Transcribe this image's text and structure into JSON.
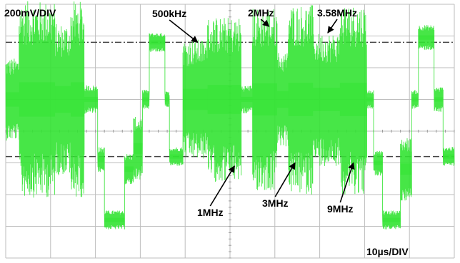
{
  "chart_data": {
    "type": "line",
    "title": "",
    "xlabel": "",
    "ylabel": "",
    "grid": true,
    "divisions": {
      "x": 10,
      "y": 8
    },
    "scale": {
      "vertical": "200mV/DIV",
      "horizontal": "10µs/DIV"
    },
    "x_unit": "µs",
    "y_unit": "mV",
    "xlim": [
      0,
      100
    ],
    "ylim": [
      -800,
      800
    ],
    "trace_color": "#33e333",
    "grid_color": "#bdbdbd",
    "cursor_levels": [
      {
        "style": "dash-dot",
        "y": 560
      },
      {
        "style": "dashed",
        "y": -160
      }
    ],
    "series": [
      {
        "segments": [
          {
            "t0": 0.0,
            "t1": 3.0,
            "level": 200,
            "burst_amp": 260
          },
          {
            "t0": 3.0,
            "t1": 11.0,
            "level": 200,
            "burst_amp": 620
          },
          {
            "t0": 11.0,
            "t1": 14.5,
            "level": 200,
            "burst_amp": 480
          },
          {
            "t0": 14.5,
            "t1": 17.5,
            "level": 200,
            "burst_amp": 620
          },
          {
            "t0": 17.5,
            "t1": 20.5,
            "level": 200,
            "burst_amp": 90
          },
          {
            "t0": 20.5,
            "t1": 22.0,
            "level": -180,
            "burst_amp": 80
          },
          {
            "t0": 22.0,
            "t1": 26.5,
            "level": -560,
            "burst_amp": 60
          },
          {
            "t0": 26.5,
            "t1": 28.5,
            "level": -240,
            "burst_amp": 100
          },
          {
            "t0": 28.5,
            "t1": 30.5,
            "level": -110,
            "burst_amp": 200
          },
          {
            "t0": 30.5,
            "t1": 32.0,
            "level": 200,
            "burst_amp": 60
          },
          {
            "t0": 32.0,
            "t1": 35.5,
            "level": 560,
            "burst_amp": 60
          },
          {
            "t0": 35.5,
            "t1": 36.5,
            "level": 200,
            "burst_amp": 50
          },
          {
            "t0": 36.5,
            "t1": 39.5,
            "level": -160,
            "burst_amp": 60
          },
          {
            "t0": 39.5,
            "t1": 45.0,
            "level": 200,
            "burst_amp": 380
          },
          {
            "t0": 45.0,
            "t1": 52.5,
            "level": 200,
            "burst_amp": 520
          },
          {
            "t0": 52.5,
            "t1": 55.0,
            "level": 200,
            "burst_amp": 90
          },
          {
            "t0": 55.0,
            "t1": 60.5,
            "level": 200,
            "burst_amp": 580
          },
          {
            "t0": 60.5,
            "t1": 63.0,
            "level": 200,
            "burst_amp": 300
          },
          {
            "t0": 63.0,
            "t1": 68.5,
            "level": 200,
            "burst_amp": 600
          },
          {
            "t0": 68.5,
            "t1": 74.5,
            "level": 200,
            "burst_amp": 420
          },
          {
            "t0": 74.5,
            "t1": 80.5,
            "level": 200,
            "burst_amp": 600
          },
          {
            "t0": 80.5,
            "t1": 82.0,
            "level": 200,
            "burst_amp": 60
          },
          {
            "t0": 82.0,
            "t1": 84.0,
            "level": -200,
            "burst_amp": 80
          },
          {
            "t0": 84.0,
            "t1": 88.0,
            "level": -560,
            "burst_amp": 60
          },
          {
            "t0": 88.0,
            "t1": 90.5,
            "level": -240,
            "burst_amp": 200
          },
          {
            "t0": 90.5,
            "t1": 92.0,
            "level": 200,
            "burst_amp": 60
          },
          {
            "t0": 92.0,
            "t1": 95.5,
            "level": 590,
            "burst_amp": 80
          },
          {
            "t0": 95.5,
            "t1": 97.5,
            "level": 200,
            "burst_amp": 80
          },
          {
            "t0": 97.5,
            "t1": 100,
            "level": -160,
            "burst_amp": 60
          }
        ]
      }
    ],
    "annotations": [
      {
        "text": "500kHz",
        "points_to": {
          "x": 42.8,
          "y": 560
        }
      },
      {
        "text": "2MHz",
        "points_to": {
          "x": 58.7,
          "y": 660
        }
      },
      {
        "text": "3.58MHz",
        "points_to": {
          "x": 71.8,
          "y": 620
        }
      },
      {
        "text": "1MHz",
        "points_to": {
          "x": 51.0,
          "y": -220
        }
      },
      {
        "text": "3MHz",
        "points_to": {
          "x": 64.5,
          "y": -200
        }
      },
      {
        "text": "9MHz",
        "points_to": {
          "x": 77.5,
          "y": -200
        }
      }
    ]
  }
}
